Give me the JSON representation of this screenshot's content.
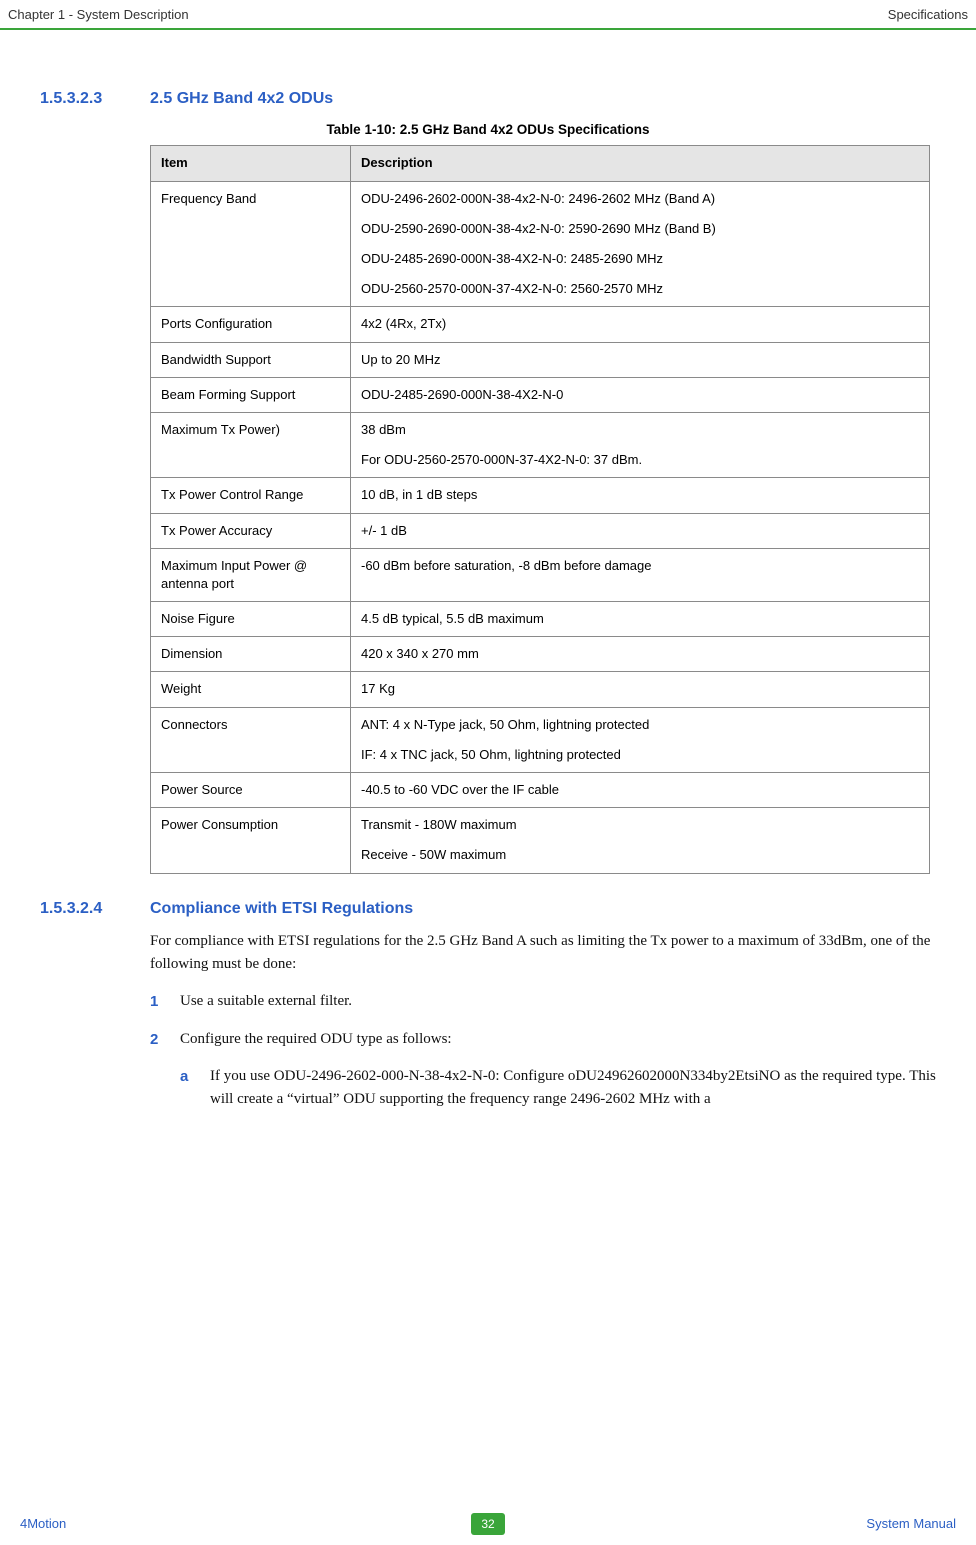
{
  "header": {
    "left": "Chapter 1 - System Description",
    "right": "Specifications"
  },
  "sectionA": {
    "num": "1.5.3.2.3",
    "title": "2.5 GHz Band 4x2 ODUs"
  },
  "table": {
    "caption": "Table 1-10: 2.5 GHz Band 4x2 ODUs Specifications",
    "head": {
      "c1": "Item",
      "c2": "Description"
    },
    "rows": {
      "r1": {
        "item": "Frequency Band",
        "d1": "ODU-2496-2602-000N-38-4x2-N-0: 2496-2602 MHz (Band A)",
        "d2": "ODU-2590-2690-000N-38-4x2-N-0: 2590-2690 MHz (Band B)",
        "d3": "ODU-2485-2690-000N-38-4X2-N-0: 2485-2690 MHz",
        "d4": "ODU-2560-2570-000N-37-4X2-N-0: 2560-2570 MHz"
      },
      "r2": {
        "item": "Ports Configuration",
        "desc": "4x2 (4Rx, 2Tx)"
      },
      "r3": {
        "item": "Bandwidth Support",
        "desc": "Up to 20 MHz"
      },
      "r4": {
        "item": "Beam Forming Support",
        "desc": "ODU-2485-2690-000N-38-4X2-N-0"
      },
      "r5": {
        "item": "Maximum Tx Power)",
        "d1": "38 dBm",
        "d2": "For ODU-2560-2570-000N-37-4X2-N-0: 37 dBm."
      },
      "r6": {
        "item": "Tx Power Control Range",
        "desc": "10 dB, in 1 dB steps"
      },
      "r7": {
        "item": "Tx Power Accuracy",
        "desc": "+/- 1 dB"
      },
      "r8": {
        "item": "Maximum Input Power @ antenna port",
        "desc": "-60 dBm before saturation, -8 dBm before damage"
      },
      "r9": {
        "item": "Noise Figure",
        "desc": "4.5 dB typical, 5.5 dB maximum"
      },
      "r10": {
        "item": "Dimension",
        "desc": "420 x 340 x 270 mm"
      },
      "r11": {
        "item": "Weight",
        "desc": "17 Kg"
      },
      "r12": {
        "item": "Connectors",
        "d1": "ANT: 4 x N-Type jack, 50 Ohm, lightning protected",
        "d2": "IF: 4 x TNC jack, 50 Ohm, lightning protected"
      },
      "r13": {
        "item": "Power Source",
        "desc": "-40.5 to -60 VDC over the IF cable"
      },
      "r14": {
        "item": "Power Consumption",
        "d1": "Transmit - 180W maximum",
        "d2": "Receive - 50W maximum"
      }
    }
  },
  "sectionB": {
    "num": "1.5.3.2.4",
    "title": "Compliance with ETSI Regulations"
  },
  "para": "For compliance with ETSI regulations for the 2.5 GHz Band A such as limiting the Tx power to a maximum of 33dBm, one of the following must be done:",
  "list": {
    "i1": {
      "n": "1",
      "t": "Use a suitable external filter."
    },
    "i2": {
      "n": "2",
      "t": "Configure the required ODU type as follows:"
    },
    "i2a": {
      "n": "a",
      "t": "If you use ODU-2496-2602-000-N-38-4x2-N-0: Configure oDU24962602000N334by2EtsiNO as the required type. This will create a “virtual” ODU supporting the frequency range 2496-2602 MHz with a"
    }
  },
  "footer": {
    "left": "4Motion",
    "page": "32",
    "right": "System Manual"
  }
}
